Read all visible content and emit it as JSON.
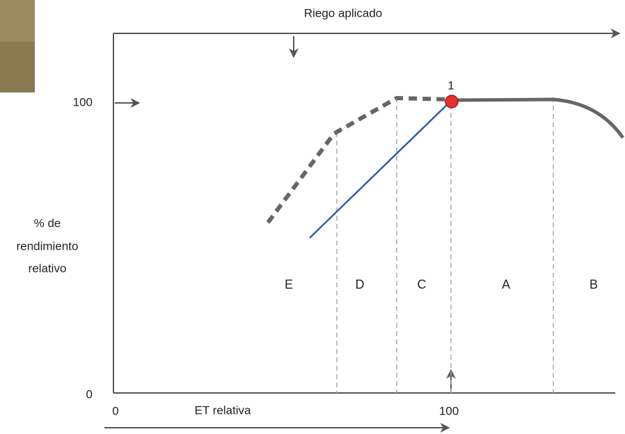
{
  "diagram": {
    "top_label": "Riego aplicado",
    "y_axis": {
      "max_label": "100",
      "min_label": "0",
      "title_lines": [
        "% de",
        "rendimiento",
        "relativo"
      ]
    },
    "x_axis": {
      "min_label": "0",
      "mid_label": "100",
      "title": "ET relativa"
    },
    "point_label": "1",
    "zones": [
      "E",
      "D",
      "C",
      "A",
      "B"
    ]
  }
}
